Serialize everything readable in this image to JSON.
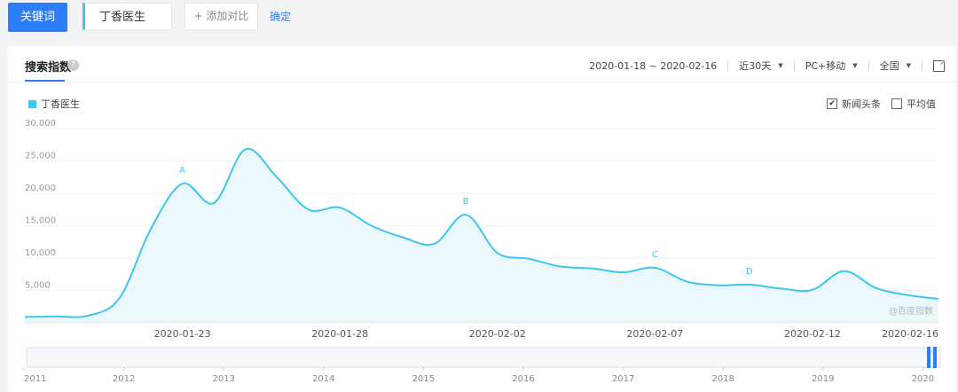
{
  "toolbar": {
    "keyword_button": "关键词",
    "keyword_value": "丁香医生",
    "add_compare": "+ 添加对比",
    "confirm": "确定"
  },
  "card": {
    "title": "搜索指数",
    "help": "?",
    "date_range": "2020-01-18 ~ 2020-02-16",
    "period": "近30天",
    "device": "PC+移动",
    "region": "全国",
    "legend_label": "丁香医生",
    "check_news": "新闻头条",
    "check_news_checked": "✔",
    "check_avg": "平均值",
    "watermark": "@百度指数"
  },
  "colors": {
    "accent": "#2d7ff9",
    "series": "#3ec6ef",
    "area": "#eaf7fb"
  },
  "chart_data": {
    "type": "area",
    "series": [
      {
        "name": "丁香医生",
        "values": [
          900,
          1000,
          1100,
          3800,
          14500,
          21500,
          18500,
          26800,
          22500,
          17500,
          17800,
          15000,
          13200,
          12200,
          16700,
          10800,
          9900,
          8700,
          8400,
          7800,
          8500,
          6400,
          5800,
          5900,
          5300,
          5100,
          8000,
          5400,
          4300,
          3700
        ]
      }
    ],
    "ylim": [
      0,
      30000
    ],
    "yticks": [
      "5,000",
      "10,000",
      "15,000",
      "20,000",
      "25,000",
      "30,000"
    ],
    "ytick_values": [
      5000,
      10000,
      15000,
      20000,
      25000,
      30000
    ],
    "x_tick_labels": [
      "2020-01-23",
      "2020-01-28",
      "2020-02-02",
      "2020-02-07",
      "2020-02-12",
      "2020-02-16"
    ],
    "x_tick_indices": [
      5,
      10,
      15,
      20,
      25,
      29
    ],
    "annotations": [
      {
        "label": "A",
        "index": 5
      },
      {
        "label": "B",
        "index": 14
      },
      {
        "label": "C",
        "index": 20
      },
      {
        "label": "D",
        "index": 23
      }
    ],
    "grid": true
  },
  "range_axis": {
    "labels": [
      "2011",
      "2012",
      "2013",
      "2014",
      "2015",
      "2016",
      "2017",
      "2018",
      "2019",
      "2020"
    ]
  }
}
